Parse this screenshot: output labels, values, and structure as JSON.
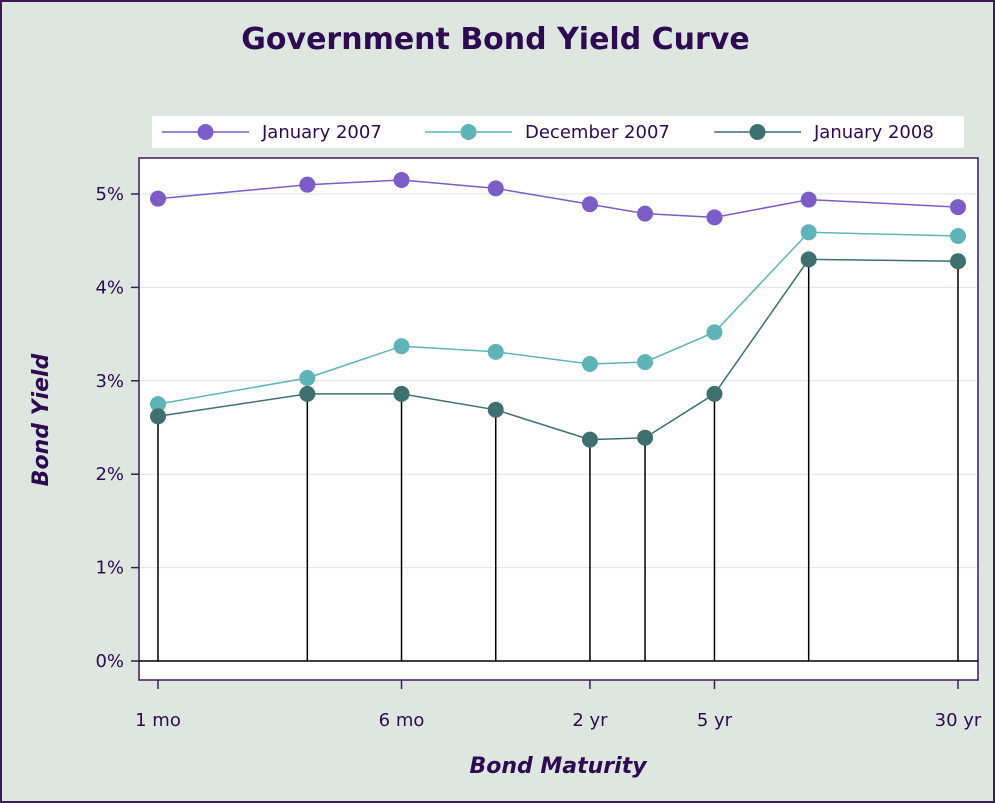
{
  "chart_data": {
    "type": "line",
    "title": "Government Bond Yield Curve",
    "xlabel": "Bond Maturity",
    "ylabel": "Bond Yield",
    "x_months": [
      1,
      3,
      6,
      12,
      24,
      36,
      60,
      120,
      360
    ],
    "x_tick_labels": [
      {
        "months": 1,
        "label": "1 mo"
      },
      {
        "months": 6,
        "label": "6 mo"
      },
      {
        "months": 24,
        "label": "2 yr"
      },
      {
        "months": 60,
        "label": "5 yr"
      },
      {
        "months": 360,
        "label": "30 yr"
      }
    ],
    "x_scale": "log",
    "ylim": [
      0,
      5.4
    ],
    "y_ticks": [
      0,
      1,
      2,
      3,
      4,
      5
    ],
    "y_tick_suffix": "%",
    "grid": true,
    "legend_position": "top",
    "series": [
      {
        "name": "January 2007",
        "color": "#7c5cc8",
        "values": [
          4.95,
          5.1,
          5.15,
          5.06,
          4.89,
          4.79,
          4.75,
          4.94,
          4.86
        ]
      },
      {
        "name": "December 2007",
        "color": "#5fb4b8",
        "values": [
          2.75,
          3.03,
          3.37,
          3.31,
          3.18,
          3.2,
          3.52,
          4.59,
          4.55
        ]
      },
      {
        "name": "January 2008",
        "color": "#3e7070",
        "values": [
          2.62,
          2.86,
          2.86,
          2.69,
          2.37,
          2.39,
          2.86,
          4.3,
          4.28
        ]
      }
    ],
    "drop_lines_series": "January 2008"
  }
}
